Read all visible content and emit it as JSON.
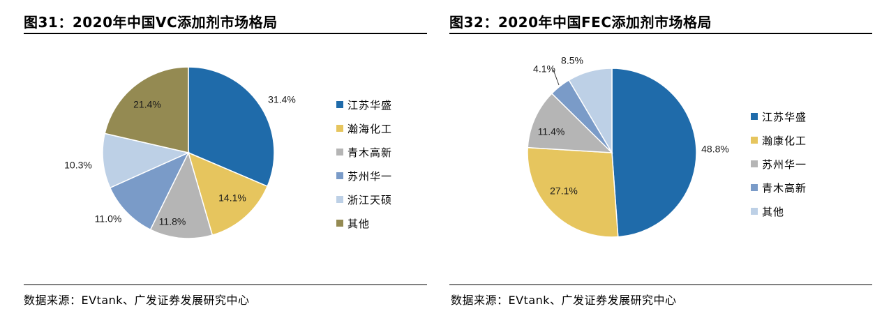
{
  "chart_data": [
    {
      "type": "pie",
      "title": "图31：2020年中国VC添加剂市场格局",
      "categories": [
        "江苏华盛",
        "瀚海化工",
        "青木高新",
        "苏州华一",
        "浙江天硕",
        "其他"
      ],
      "values": [
        31.4,
        14.1,
        11.8,
        11.0,
        10.3,
        21.4
      ],
      "value_labels": [
        "31.4%",
        "14.1%",
        "11.8%",
        "11.0%",
        "10.3%",
        "21.4%"
      ],
      "colors": [
        "#1F6BAA",
        "#E6C55E",
        "#B5B5B5",
        "#7A9BC8",
        "#BDD0E6",
        "#948A52"
      ],
      "start": "12 o'clock, clockwise",
      "legend_position": "right",
      "source": "数据来源：EVtank、广发证券发展研究中心"
    },
    {
      "type": "pie",
      "title": "图32：2020年中国FEC添加剂市场格局",
      "categories": [
        "江苏华盛",
        "瀚康化工",
        "苏州华一",
        "青木高新",
        "其他"
      ],
      "values": [
        48.8,
        27.1,
        11.4,
        4.1,
        8.5
      ],
      "value_labels": [
        "48.8%",
        "27.1%",
        "11.4%",
        "4.1%",
        "8.5%"
      ],
      "colors": [
        "#1F6BAA",
        "#E6C55E",
        "#B5B5B5",
        "#7A9BC8",
        "#BDD0E6"
      ],
      "start": "12 o'clock, clockwise",
      "legend_position": "right",
      "source": "数据来源：EVtank、广发证券发展研究中心"
    }
  ]
}
